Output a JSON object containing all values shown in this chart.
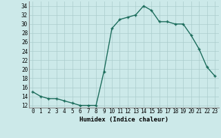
{
  "x": [
    0,
    1,
    2,
    3,
    4,
    5,
    6,
    7,
    8,
    9,
    10,
    11,
    12,
    13,
    14,
    15,
    16,
    17,
    18,
    19,
    20,
    21,
    22,
    23
  ],
  "y": [
    15,
    14,
    13.5,
    13.5,
    13,
    12.5,
    12,
    12,
    12,
    19.5,
    29,
    31,
    31.5,
    32,
    34,
    33,
    30.5,
    30.5,
    30,
    30,
    27.5,
    24.5,
    20.5,
    18.5
  ],
  "line_color": "#1a6b5a",
  "marker": "+",
  "marker_size": 3,
  "marker_lw": 1.0,
  "bg_color": "#cce9e9",
  "grid_color": "#aacccc",
  "xlabel": "Humidex (Indice chaleur)",
  "ylabel_ticks": [
    12,
    14,
    16,
    18,
    20,
    22,
    24,
    26,
    28,
    30,
    32,
    34
  ],
  "xlim": [
    -0.5,
    23.5
  ],
  "ylim": [
    11.5,
    35
  ],
  "xtick_labels": [
    "0",
    "1",
    "2",
    "3",
    "4",
    "5",
    "6",
    "7",
    "8",
    "9",
    "10",
    "11",
    "12",
    "13",
    "14",
    "15",
    "16",
    "17",
    "18",
    "19",
    "20",
    "21",
    "22",
    "23"
  ],
  "label_fontsize": 6.5,
  "tick_fontsize": 5.5,
  "line_width": 1.0
}
